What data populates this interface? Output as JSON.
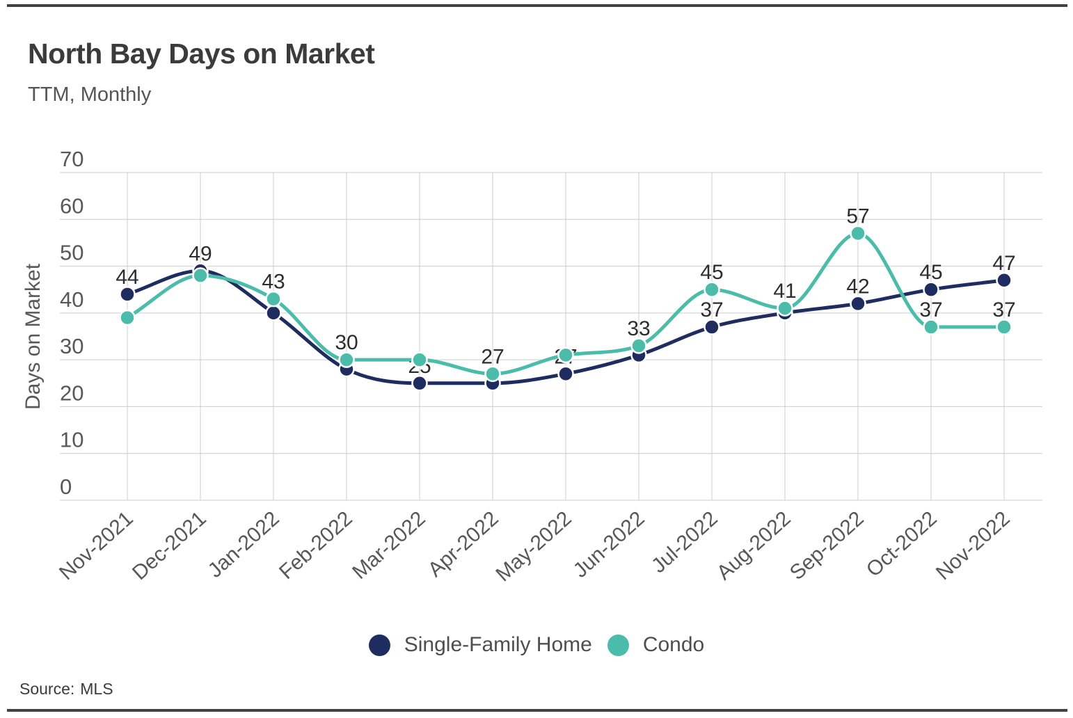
{
  "page": {
    "title": "North Bay Days on Market",
    "subtitle": "TTM, Monthly"
  },
  "footer": {
    "source_label": "Source:",
    "source_value": "MLS"
  },
  "colors": {
    "navy": "#1f2c5f",
    "teal": "#4cbcaa",
    "grid": "#cccccc",
    "axis_text": "#585858",
    "data_label": "#2d2d2d",
    "title_text": "#3b3b3b",
    "border_rule": "#424242",
    "background": "#ffffff"
  },
  "chart_data": {
    "type": "line",
    "title": "North Bay Days on Market",
    "subtitle": "TTM, Monthly",
    "xlabel": "",
    "ylabel": "Days on Market",
    "ylim": [
      0,
      70
    ],
    "yticks": [
      0,
      10,
      20,
      30,
      40,
      50,
      60,
      70
    ],
    "grid": true,
    "legend_position": "bottom",
    "x_tick_rotation_deg": -42,
    "categories": [
      "Nov-2021",
      "Dec-2021",
      "Jan-2022",
      "Feb-2022",
      "Mar-2022",
      "Apr-2022",
      "May-2022",
      "Jun-2022",
      "Jul-2022",
      "Aug-2022",
      "Sep-2022",
      "Oct-2022",
      "Nov-2022"
    ],
    "series": [
      {
        "name": "Single-Family Home",
        "color": "#1f2c5f",
        "values": [
          44,
          49,
          40,
          28,
          25,
          25,
          27,
          31,
          37,
          40,
          42,
          45,
          47
        ],
        "point_labels": [
          44,
          49,
          null,
          null,
          25,
          null,
          27,
          null,
          37,
          null,
          42,
          45,
          47
        ]
      },
      {
        "name": "Condo",
        "color": "#4cbcaa",
        "values": [
          39,
          48,
          43,
          30,
          30,
          27,
          31,
          33,
          45,
          41,
          57,
          37,
          37
        ],
        "point_labels": [
          null,
          null,
          43,
          30,
          null,
          27,
          null,
          33,
          45,
          41,
          57,
          37,
          37
        ]
      }
    ]
  }
}
